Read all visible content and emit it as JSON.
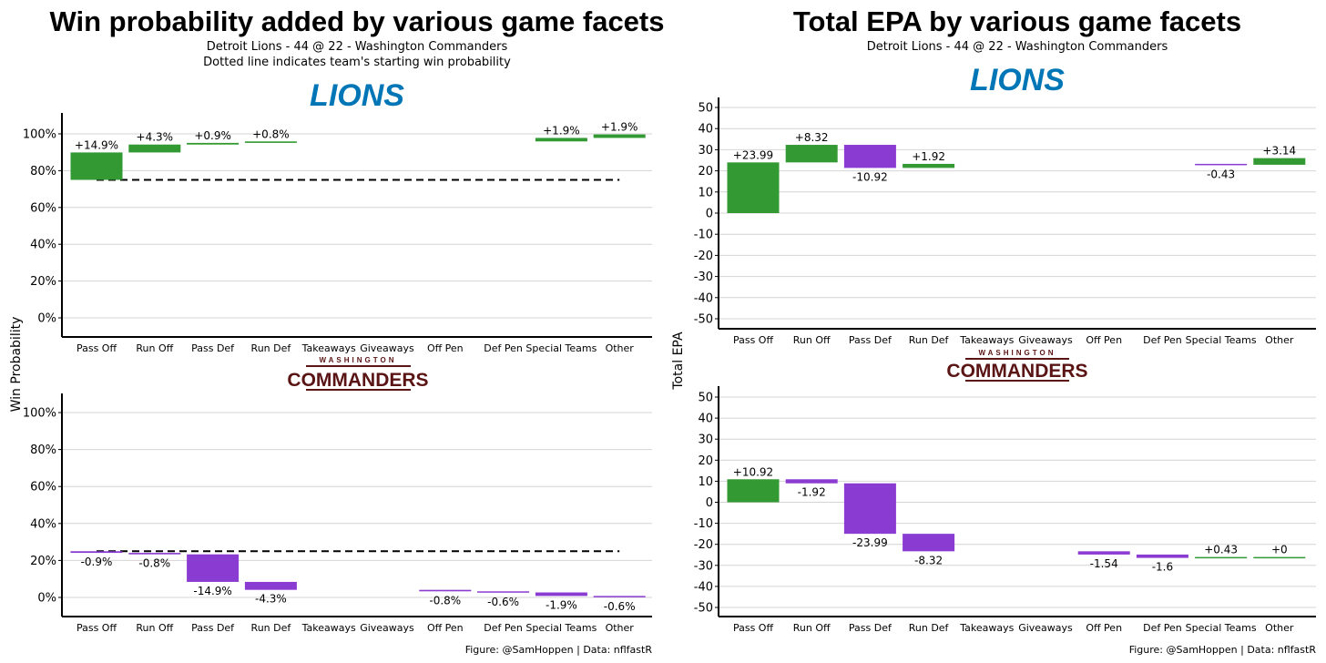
{
  "left": {
    "title": "Win probability added by various game facets",
    "subtitle": "Detroit Lions - 44 @ 22 - Washington Commanders",
    "subtitle2": "Dotted line indicates team's starting win probability",
    "ylabel": "Win Probability"
  },
  "right": {
    "title": "Total EPA by various game facets",
    "subtitle": "Detroit Lions - 44 @ 22 - Washington Commanders",
    "ylabel": "Total EPA"
  },
  "logos": {
    "lions": "LIONS",
    "washington": "WASHINGTON",
    "commanders": "COMMANDERS"
  },
  "caption": "Figure: @SamHoppen | Data: nflfastR",
  "colors": {
    "positive": "#339933",
    "negative": "#8A3BD1",
    "lions": "#0076B6",
    "commanders": "#5A1414"
  },
  "chart_data": [
    {
      "type": "bar",
      "subtype": "waterfall",
      "team": "Detroit Lions",
      "metric": "Win Probability (%)",
      "categories": [
        "Pass Off",
        "Run Off",
        "Pass Def",
        "Run Def",
        "Takeaways",
        "Giveaways",
        "Off Pen",
        "Def Pen",
        "Special Teams",
        "Other"
      ],
      "start": 75,
      "reference_line": 75,
      "deltas": [
        14.9,
        4.3,
        0.9,
        0.8,
        0,
        0,
        0,
        0,
        1.9,
        1.9
      ],
      "labels": [
        "+14.9%",
        "+4.3%",
        "+0.9%",
        "+0.8%",
        "",
        "",
        "",
        "",
        "+1.9%",
        "+1.9%"
      ],
      "ylim": [
        -10,
        110
      ],
      "yticks": [
        0,
        20,
        40,
        60,
        80,
        100
      ],
      "ytick_labels": [
        "0%",
        "20%",
        "40%",
        "60%",
        "80%",
        "100%"
      ],
      "grid": true
    },
    {
      "type": "bar",
      "subtype": "waterfall",
      "team": "Washington Commanders",
      "metric": "Win Probability (%)",
      "categories": [
        "Pass Off",
        "Run Off",
        "Pass Def",
        "Run Def",
        "Takeaways",
        "Giveaways",
        "Off Pen",
        "Def Pen",
        "Special Teams",
        "Other"
      ],
      "start": 25,
      "reference_line": 25,
      "deltas": [
        -0.9,
        -0.8,
        -14.9,
        -4.3,
        0,
        0,
        -0.8,
        -0.6,
        -1.9,
        -0.6
      ],
      "labels": [
        "-0.9%",
        "-0.8%",
        "-14.9%",
        "-4.3%",
        "",
        "",
        "-0.8%",
        "-0.6%",
        "-1.9%",
        "-0.6%"
      ],
      "ylim": [
        -10,
        110
      ],
      "yticks": [
        0,
        20,
        40,
        60,
        80,
        100
      ],
      "ytick_labels": [
        "0%",
        "20%",
        "40%",
        "60%",
        "80%",
        "100%"
      ],
      "grid": true
    },
    {
      "type": "bar",
      "subtype": "waterfall",
      "team": "Detroit Lions",
      "metric": "Total EPA",
      "categories": [
        "Pass Off",
        "Run Off",
        "Pass Def",
        "Run Def",
        "Takeaways",
        "Giveaways",
        "Off Pen",
        "Def Pen",
        "Special Teams",
        "Other"
      ],
      "start": 0,
      "deltas": [
        23.99,
        8.32,
        -10.92,
        1.92,
        0,
        0,
        0,
        0,
        -0.43,
        3.14
      ],
      "labels": [
        "+23.99",
        "+8.32",
        "-10.92",
        "+1.92",
        "",
        "",
        "",
        "",
        "-0.43",
        "+3.14"
      ],
      "ylim": [
        -55,
        55
      ],
      "yticks": [
        -50,
        -40,
        -30,
        -20,
        -10,
        0,
        10,
        20,
        30,
        40,
        50
      ],
      "ytick_labels": [
        "-50",
        "-40",
        "-30",
        "-20",
        "-10",
        "0",
        "10",
        "20",
        "30",
        "40",
        "50"
      ],
      "grid": true
    },
    {
      "type": "bar",
      "subtype": "waterfall",
      "team": "Washington Commanders",
      "metric": "Total EPA",
      "categories": [
        "Pass Off",
        "Run Off",
        "Pass Def",
        "Run Def",
        "Takeaways",
        "Giveaways",
        "Off Pen",
        "Def Pen",
        "Special Teams",
        "Other"
      ],
      "start": 0,
      "deltas": [
        10.92,
        -1.92,
        -23.99,
        -8.32,
        0,
        0,
        -1.54,
        -1.6,
        0.43,
        0
      ],
      "labels": [
        "+10.92",
        "-1.92",
        "-23.99",
        "-8.32",
        "",
        "",
        "-1.54",
        "-1.6",
        "+0.43",
        "+0"
      ],
      "ylim": [
        -55,
        55
      ],
      "yticks": [
        -50,
        -40,
        -30,
        -20,
        -10,
        0,
        10,
        20,
        30,
        40,
        50
      ],
      "ytick_labels": [
        "-50",
        "-40",
        "-30",
        "-20",
        "-10",
        "0",
        "10",
        "20",
        "30",
        "40",
        "50"
      ],
      "grid": true
    }
  ]
}
